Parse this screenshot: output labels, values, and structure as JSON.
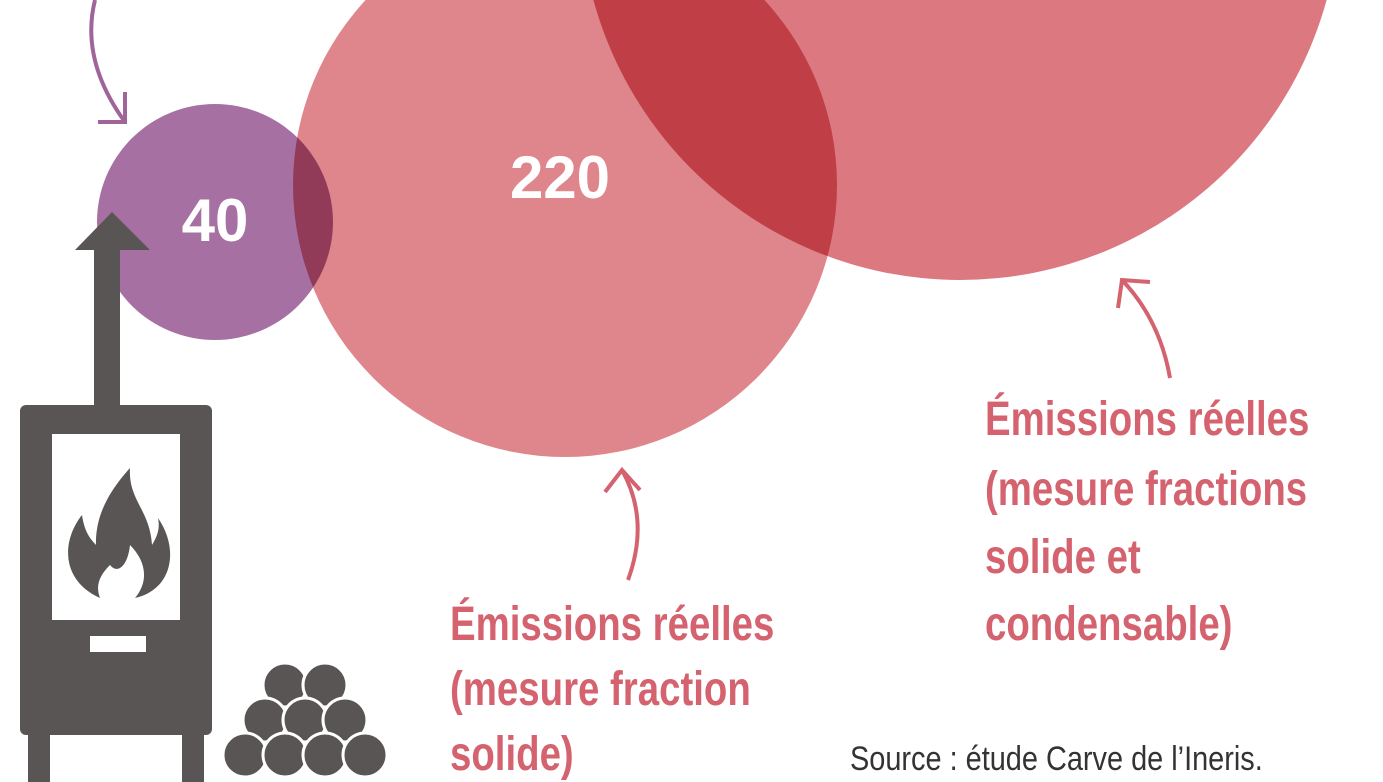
{
  "bubbles": [
    {
      "label": "40"
    },
    {
      "label": "220"
    }
  ],
  "captions": [
    [
      "Émissions réelles",
      "(mesure fraction",
      "solide)"
    ],
    [
      "Émissions réelles",
      "(mesure fractions",
      "solide et",
      "condensable)"
    ]
  ],
  "source": "Source : étude Carve de l’Ineris."
}
